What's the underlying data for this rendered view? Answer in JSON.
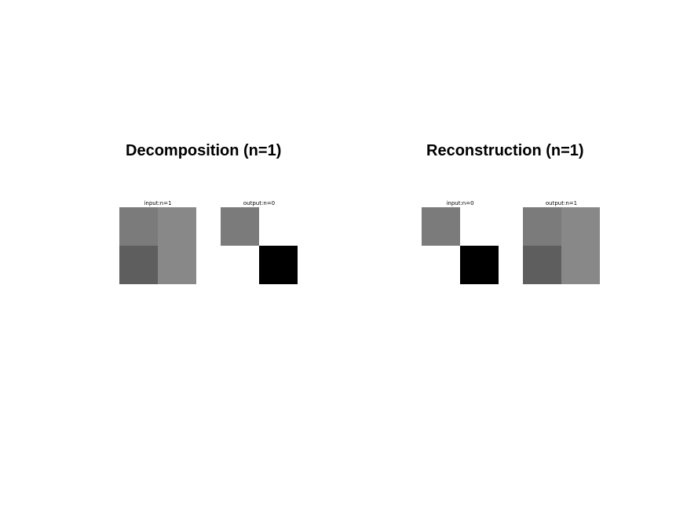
{
  "panels": [
    {
      "title": "Decomposition (n=1)",
      "images": [
        {
          "label": "input:n=1",
          "cells": [
            [
              "#7b7b7b",
              "#888888"
            ],
            [
              "#5e5e5e",
              "#888888"
            ]
          ]
        },
        {
          "label": "output:n=0",
          "cells": [
            [
              "#7b7b7b",
              "#ffffff"
            ],
            [
              "#ffffff",
              "#000000"
            ]
          ]
        }
      ]
    },
    {
      "title": "Reconstruction (n=1)",
      "images": [
        {
          "label": "input:n=0",
          "cells": [
            [
              "#7b7b7b",
              "#ffffff"
            ],
            [
              "#ffffff",
              "#000000"
            ]
          ]
        },
        {
          "label": "output:n=1",
          "cells": [
            [
              "#7b7b7b",
              "#888888"
            ],
            [
              "#5e5e5e",
              "#888888"
            ]
          ]
        }
      ]
    }
  ]
}
